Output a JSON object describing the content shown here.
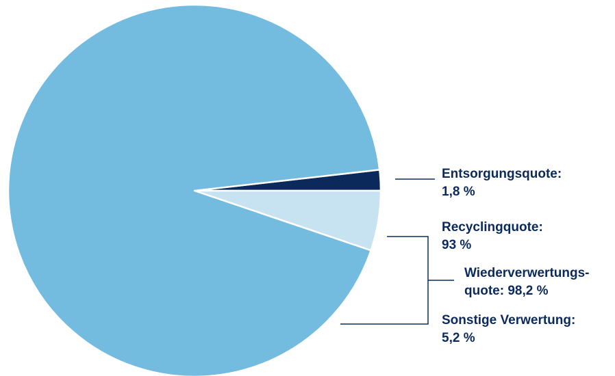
{
  "chart_data": {
    "type": "pie",
    "slices": [
      {
        "label": "Recyclingquote",
        "value": 93,
        "display": "93 %",
        "color": "#73bbdf"
      },
      {
        "label": "Entsorgungsquote",
        "value": 1.8,
        "display": "1,8 %",
        "color": "#0b2a5b"
      },
      {
        "label": "Sonstige Verwertung",
        "value": 5.2,
        "display": "5,2 %",
        "color": "#c7e3f1"
      }
    ],
    "group": {
      "label": "Wiederverwertungsquote",
      "value": 98.2,
      "display": "98,2 %",
      "members": [
        "Recyclingquote",
        "Sonstige Verwertung"
      ]
    }
  },
  "labels": {
    "entsorgung_title": "Entsorgungsquote:",
    "entsorgung_value": "1,8 %",
    "recycling_title": "Recyclingquote:",
    "recycling_value": "93 %",
    "wieder_line1": "Wiederverwertungs-",
    "wieder_line2": "quote: 98,2 %",
    "sonstige_title": "Sonstige Verwertung:",
    "sonstige_value": "5,2 %"
  },
  "colors": {
    "text": "#0b2a5b",
    "leader": "#0b2a5b",
    "separator": "#ffffff"
  }
}
